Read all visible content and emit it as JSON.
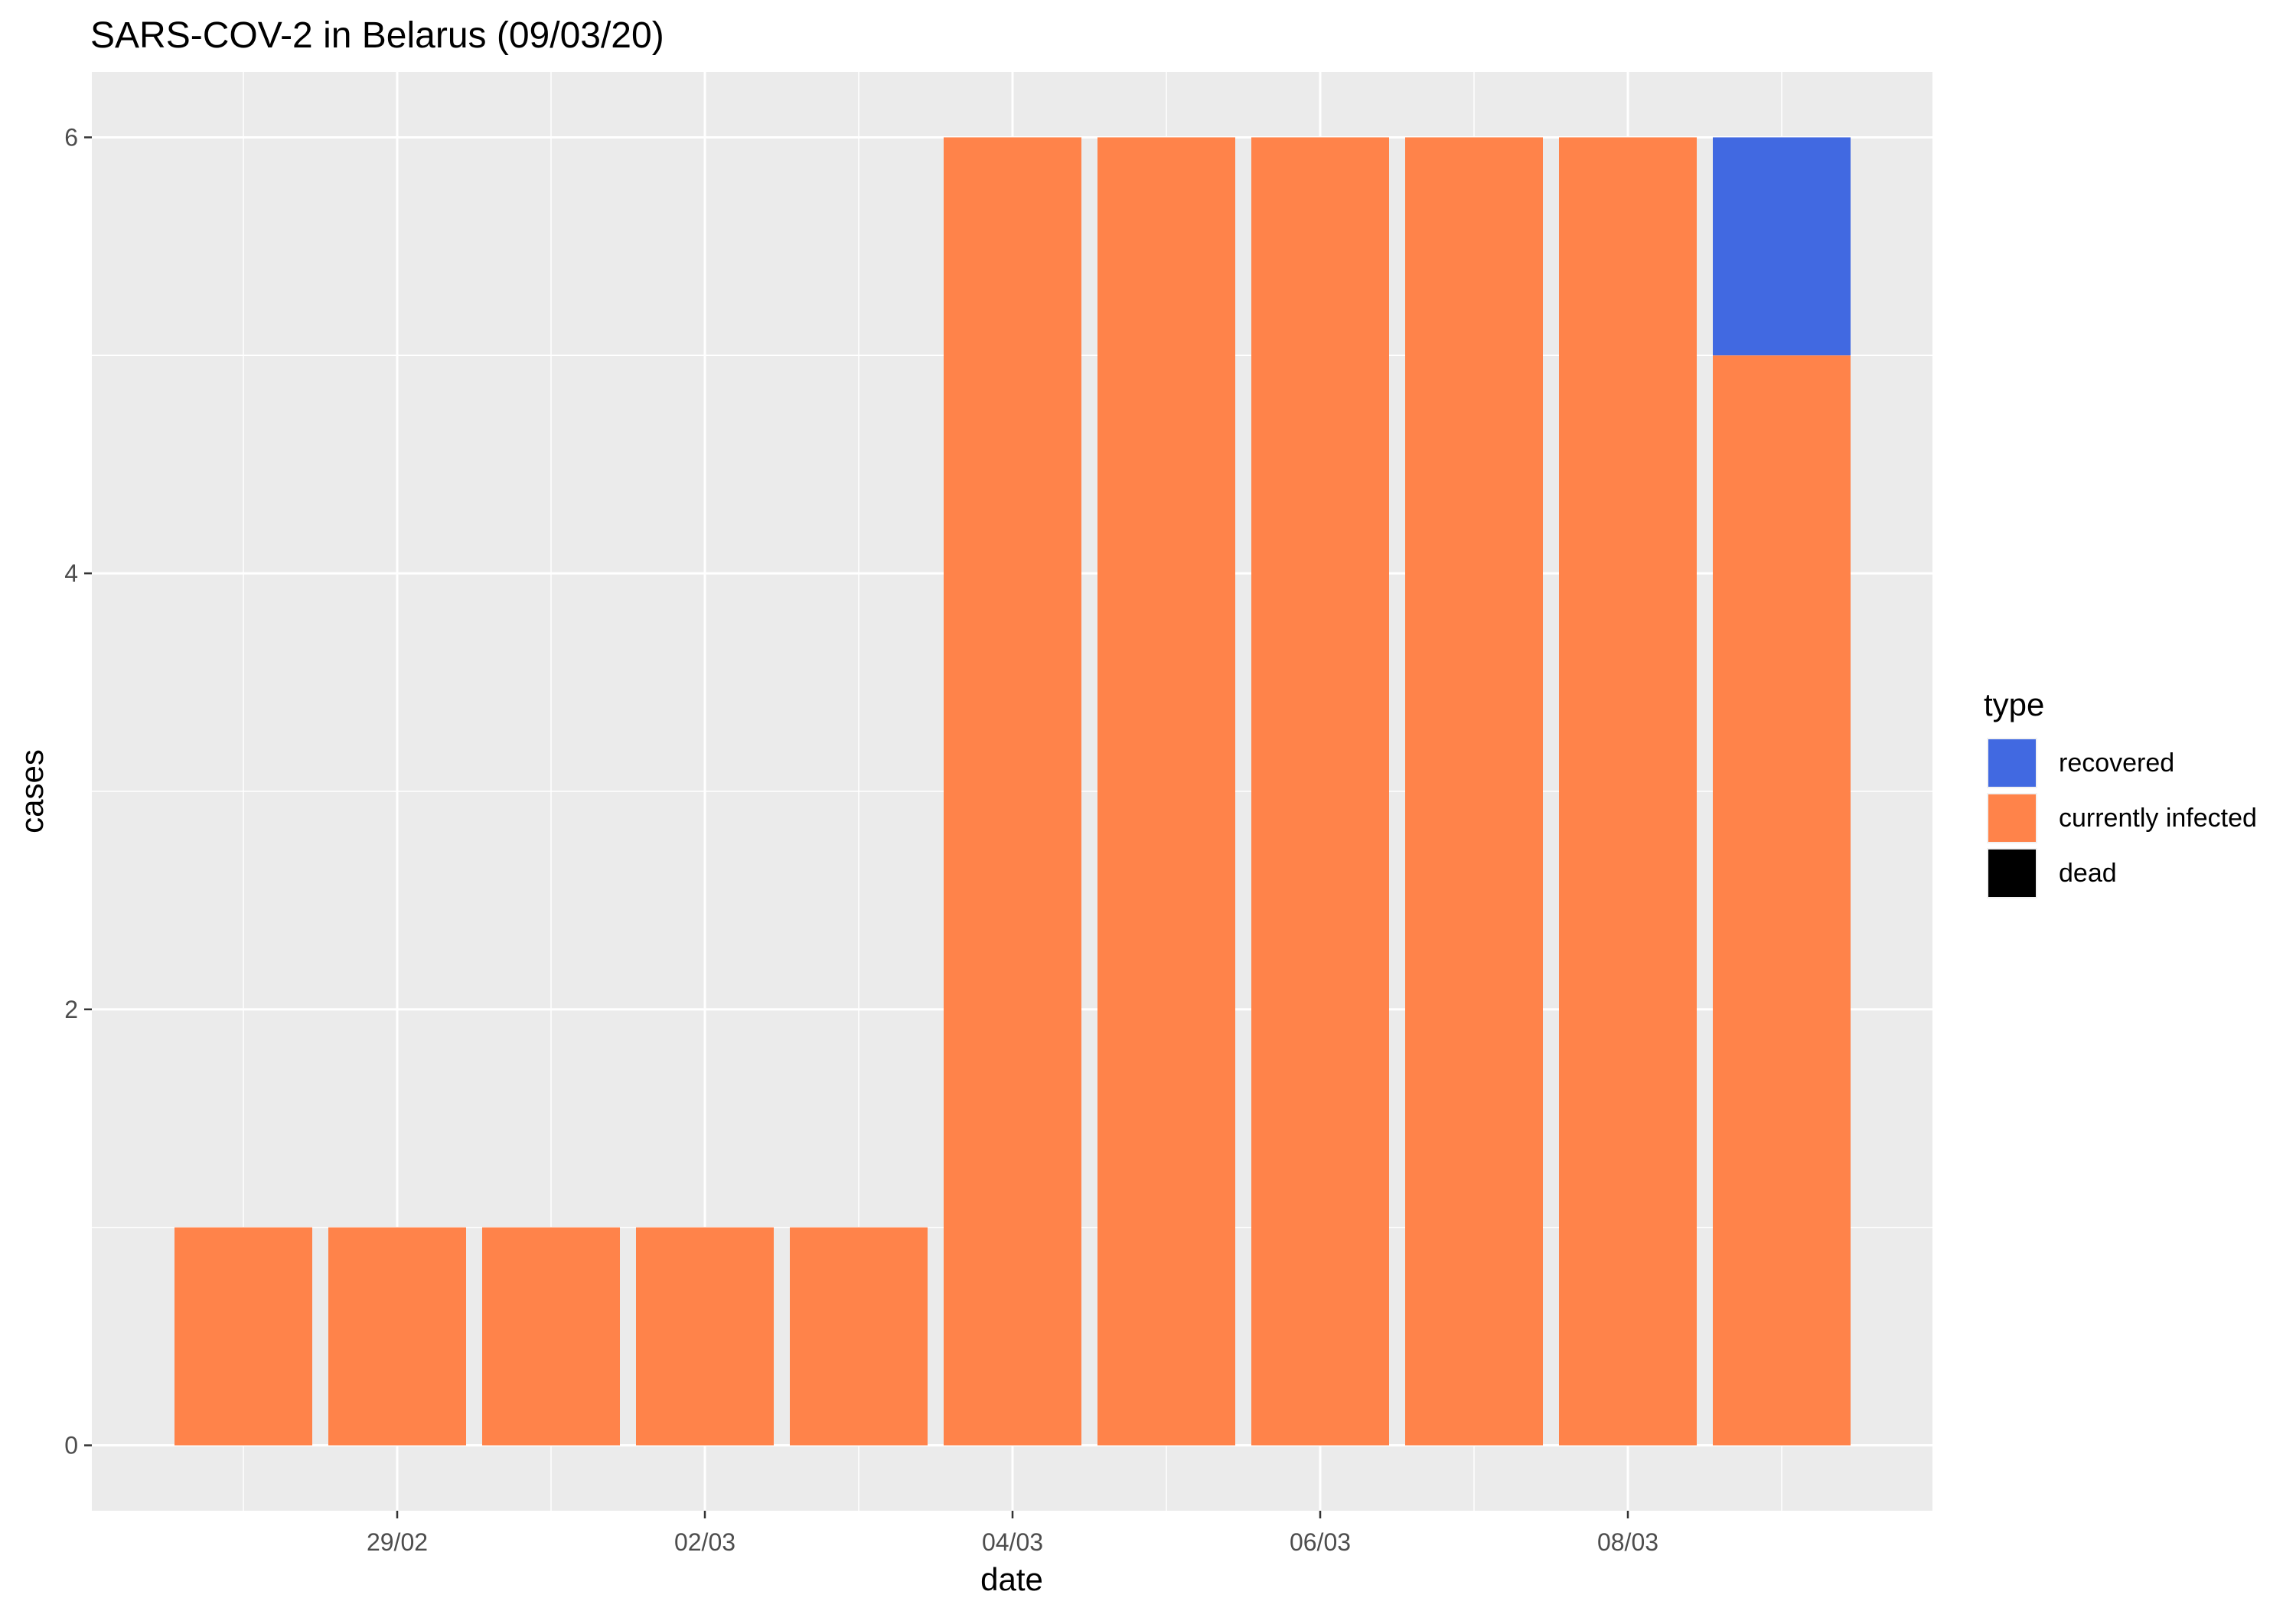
{
  "chart_data": {
    "type": "bar",
    "stacked": true,
    "title": "SARS-COV-2 in Belarus (09/03/20)",
    "xlabel": "date",
    "ylabel": "cases",
    "categories": [
      "28/02",
      "29/02",
      "01/03",
      "02/03",
      "03/03",
      "04/03",
      "05/03",
      "06/03",
      "07/03",
      "08/03",
      "09/03"
    ],
    "x_tick_labels": [
      "29/02",
      "02/03",
      "04/03",
      "06/03",
      "08/03"
    ],
    "y_ticks": [
      0,
      2,
      4,
      6
    ],
    "ylim": [
      -0.3,
      6.3
    ],
    "grid": true,
    "series": [
      {
        "name": "currently infected",
        "color": "#FF834A",
        "values": [
          1,
          1,
          1,
          1,
          1,
          6,
          6,
          6,
          6,
          6,
          5
        ]
      },
      {
        "name": "recovered",
        "color": "#4169E1",
        "values": [
          0,
          0,
          0,
          0,
          0,
          0,
          0,
          0,
          0,
          0,
          1
        ]
      },
      {
        "name": "dead",
        "color": "#000000",
        "values": [
          0,
          0,
          0,
          0,
          0,
          0,
          0,
          0,
          0,
          0,
          0
        ]
      }
    ],
    "legend": {
      "title": "type",
      "position": "right",
      "entries": [
        {
          "label": "recovered",
          "color": "#4169E1"
        },
        {
          "label": "currently infected",
          "color": "#FF834A"
        },
        {
          "label": "dead",
          "color": "#000000"
        }
      ]
    },
    "colors": {
      "panel_background": "#EBEBEB",
      "gridline": "#FFFFFF",
      "text": "#000000",
      "tick_text": "#4D4D4D",
      "tick_mark": "#333333"
    }
  }
}
